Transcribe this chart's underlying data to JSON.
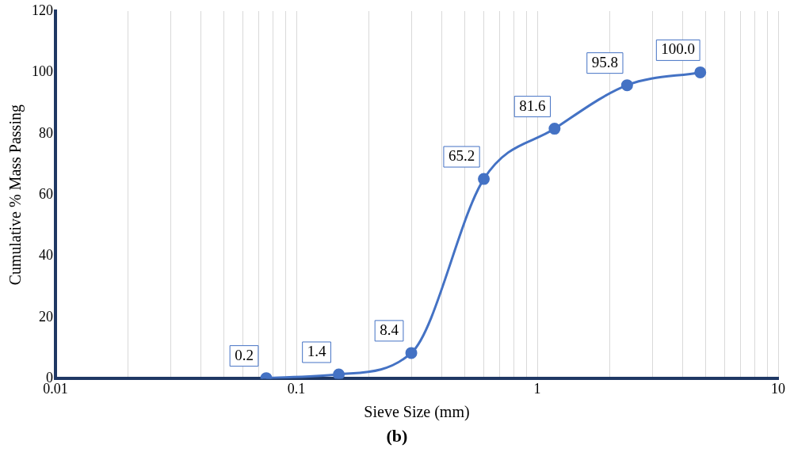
{
  "chart_data": {
    "type": "line",
    "xlabel": "Sieve Size (mm)",
    "ylabel": "Cumulative % Mass Passing",
    "annotations": [
      "(b)"
    ],
    "x": [
      0.075,
      0.15,
      0.3,
      0.6,
      1.18,
      2.36,
      4.75
    ],
    "series": [
      {
        "color": "#4472c4",
        "values": [
          0.2,
          1.4,
          8.4,
          65.2,
          81.6,
          95.8,
          100.0
        ],
        "value_labels": [
          "0.2",
          "1.4",
          "8.4",
          "65.2",
          "81.6",
          "95.8",
          "100.0"
        ]
      }
    ],
    "log": "x",
    "xlim": [
      0.01,
      10
    ],
    "xticks": [
      0.01,
      {
        "value": 0.02,
        "label": null
      },
      {
        "value": 0.03,
        "label": null
      },
      {
        "value": 0.04,
        "label": null
      },
      {
        "value": 0.05,
        "label": null
      },
      {
        "value": 0.06,
        "label": null
      },
      {
        "value": 0.07,
        "label": null
      },
      {
        "value": 0.08,
        "label": null
      },
      {
        "value": 0.09,
        "label": null
      },
      0.1,
      {
        "value": 0.2,
        "label": null
      },
      {
        "value": 0.3,
        "label": null
      },
      {
        "value": 0.4,
        "label": null
      },
      {
        "value": 0.5,
        "label": null
      },
      {
        "value": 0.6,
        "label": null
      },
      {
        "value": 0.7,
        "label": null
      },
      {
        "value": 0.8,
        "label": null
      },
      {
        "value": 0.9,
        "label": null
      },
      1,
      {
        "value": 2,
        "label": null
      },
      {
        "value": 3,
        "label": null
      },
      {
        "value": 4,
        "label": null
      },
      {
        "value": 5,
        "label": null
      },
      {
        "value": 6,
        "label": null
      },
      {
        "value": 7,
        "label": null
      },
      {
        "value": 8,
        "label": null
      },
      {
        "value": 9,
        "label": null
      },
      10
    ],
    "ylim": [
      0,
      120
    ],
    "yticks": [
      0,
      20,
      40,
      60,
      80,
      100,
      120
    ],
    "grid": "x",
    "marker": "circle",
    "line_style": "solid",
    "legend": false
  }
}
